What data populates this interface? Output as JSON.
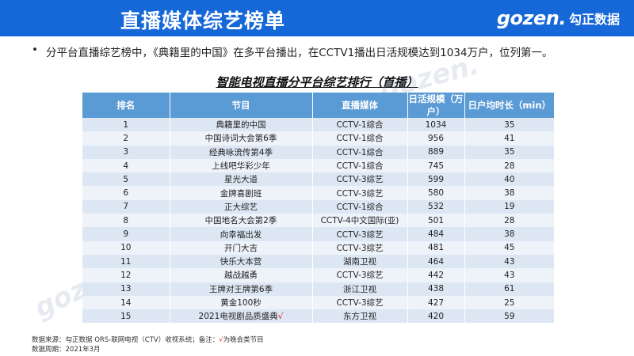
{
  "header": {
    "title": "直播媒体综艺榜单",
    "logo_mark": "gozen.",
    "logo_text": "勾正数据"
  },
  "bullet": "分平台直播综艺榜中，《典籍里的中国》在多平台播出，在CCTV1播出日活规模达到1034万户，位列第一。",
  "table_title": "智能电视直播分平台综艺排行（首播）",
  "table": {
    "headers": [
      "排名",
      "节目",
      "直播媒体",
      "日活规模（万户）",
      "日户均时长（min）"
    ],
    "rows": [
      [
        "1",
        "典籍里的中国",
        "CCTV-1综合",
        "1034",
        "35"
      ],
      [
        "2",
        "中国诗词大会第6季",
        "CCTV-1综合",
        "956",
        "41"
      ],
      [
        "3",
        "经典咏流传第4季",
        "CCTV-1综合",
        "889",
        "35"
      ],
      [
        "4",
        "上线吧华彩少年",
        "CCTV-1综合",
        "745",
        "28"
      ],
      [
        "5",
        "星光大道",
        "CCTV-3综艺",
        "599",
        "40"
      ],
      [
        "6",
        "金牌喜剧班",
        "CCTV-3综艺",
        "580",
        "38"
      ],
      [
        "7",
        "正大综艺",
        "CCTV-1综合",
        "532",
        "19"
      ],
      [
        "8",
        "中国地名大会第2季",
        "CCTV-4中文国际(亚)",
        "501",
        "28"
      ],
      [
        "9",
        "向幸福出发",
        "CCTV-3综艺",
        "484",
        "38"
      ],
      [
        "10",
        "开门大吉",
        "CCTV-3综艺",
        "481",
        "45"
      ],
      [
        "11",
        "快乐大本营",
        "湖南卫视",
        "464",
        "43"
      ],
      [
        "12",
        "越战越勇",
        "CCTV-3综艺",
        "442",
        "43"
      ],
      [
        "13",
        "王牌对王牌第6季",
        "浙江卫视",
        "438",
        "61"
      ],
      [
        "14",
        "黄金100秒",
        "CCTV-3综艺",
        "427",
        "25"
      ],
      [
        "15",
        "2021电视剧品质盛典",
        "东方卫视",
        "420",
        "59"
      ]
    ],
    "check_mark": "√"
  },
  "footer": {
    "source": "数据来源：勾正数据 ORS-联网电视（CTV）收视系统；备注：",
    "note_mark": "√",
    "note_text": "为晚会类节目",
    "period": "数据周期：2021年3月"
  },
  "watermark_text": "gozen.",
  "colors": {
    "header_bg": "#1668d8",
    "table_header_bg": "#5b9bd5",
    "row_odd": "#dde7f4",
    "row_even": "#eef3fa",
    "accent_red": "#e02020"
  }
}
